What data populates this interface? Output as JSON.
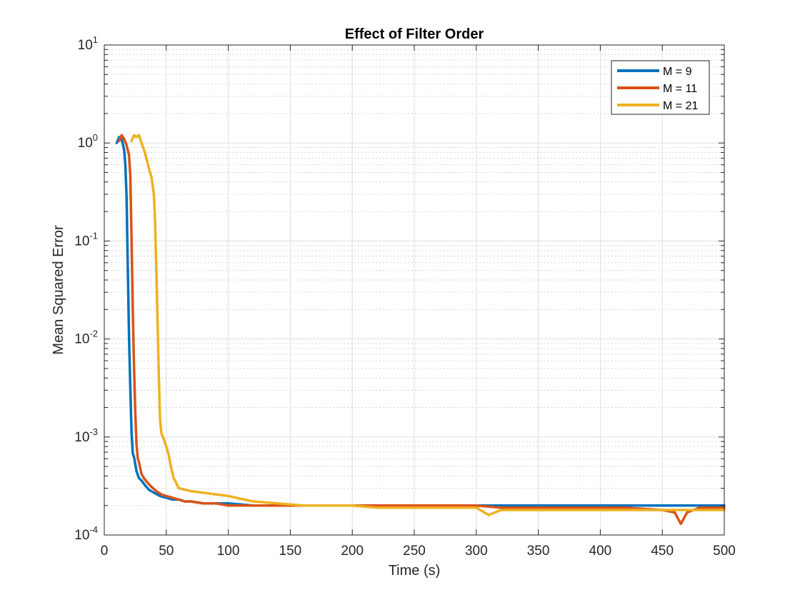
{
  "chart_data": {
    "type": "line",
    "title": "Effect of Filter Order",
    "xlabel": "Time (s)",
    "ylabel": "Mean Squared Error",
    "xlim": [
      0,
      500
    ],
    "ylim": [
      0.0001,
      10
    ],
    "yscale": "log",
    "x_ticks": [
      0,
      50,
      100,
      150,
      200,
      250,
      300,
      350,
      400,
      450,
      500
    ],
    "x_tick_labels": [
      "0",
      "50",
      "100",
      "150",
      "200",
      "250",
      "300",
      "350",
      "400",
      "450",
      "500"
    ],
    "y_ticks": [
      {
        "value": 0.0001,
        "base": "10",
        "exp": "-4"
      },
      {
        "value": 0.001,
        "base": "10",
        "exp": "-3"
      },
      {
        "value": 0.01,
        "base": "10",
        "exp": "-2"
      },
      {
        "value": 0.1,
        "base": "10",
        "exp": "-1"
      },
      {
        "value": 1,
        "base": "10",
        "exp": "0"
      },
      {
        "value": 10,
        "base": "10",
        "exp": "1"
      }
    ],
    "grid": true,
    "minor_grid": true,
    "legend_position": "top-right",
    "series": [
      {
        "name": "M = 9",
        "color": "#0072BD",
        "x": [
          10,
          12,
          14,
          16,
          17,
          18,
          19,
          20,
          21,
          22,
          23,
          24,
          26,
          28,
          30,
          33,
          36,
          40,
          45,
          50,
          55,
          60,
          65,
          70,
          80,
          90,
          100,
          120,
          140,
          160,
          180,
          200,
          220,
          250,
          280,
          300,
          320,
          350,
          380,
          400,
          420,
          450,
          480,
          500
        ],
        "y": [
          1.0,
          1.15,
          1.1,
          0.85,
          0.6,
          0.28,
          0.05,
          0.01,
          0.003,
          0.0011,
          0.00068,
          0.00062,
          0.00045,
          0.00038,
          0.00036,
          0.00032,
          0.00029,
          0.00027,
          0.00025,
          0.00024,
          0.00023,
          0.00023,
          0.00022,
          0.00022,
          0.00021,
          0.00021,
          0.00021,
          0.0002,
          0.0002,
          0.0002,
          0.0002,
          0.0002,
          0.0002,
          0.0002,
          0.0002,
          0.0002,
          0.0002,
          0.0002,
          0.0002,
          0.0002,
          0.0002,
          0.0002,
          0.0002,
          0.0002
        ]
      },
      {
        "name": "M = 11",
        "color": "#D95319",
        "x": [
          12,
          14,
          16,
          18,
          20,
          21,
          22,
          23,
          24,
          25,
          26,
          27,
          28,
          30,
          32,
          35,
          38,
          42,
          46,
          50,
          55,
          60,
          65,
          70,
          80,
          90,
          100,
          120,
          140,
          160,
          180,
          200,
          220,
          250,
          280,
          300,
          320,
          350,
          380,
          400,
          420,
          450,
          460,
          465,
          470,
          480,
          500
        ],
        "y": [
          1.05,
          1.2,
          1.1,
          0.95,
          0.75,
          0.45,
          0.1,
          0.02,
          0.005,
          0.0018,
          0.00085,
          0.0006,
          0.00055,
          0.00042,
          0.00038,
          0.00034,
          0.00031,
          0.00028,
          0.00026,
          0.00025,
          0.00024,
          0.00023,
          0.00022,
          0.00022,
          0.00021,
          0.00021,
          0.0002,
          0.0002,
          0.0002,
          0.0002,
          0.0002,
          0.0002,
          0.0002,
          0.0002,
          0.0002,
          0.0002,
          0.00019,
          0.00019,
          0.00019,
          0.00019,
          0.00019,
          0.00018,
          0.00017,
          0.00013,
          0.00017,
          0.00019,
          0.00019
        ]
      },
      {
        "name": "M = 21",
        "color": "#EDB120",
        "x": [
          22,
          24,
          26,
          28,
          30,
          32,
          34,
          36,
          38,
          40,
          41,
          42,
          43,
          44,
          45,
          46,
          48,
          50,
          52,
          54,
          56,
          58,
          60,
          65,
          70,
          80,
          90,
          100,
          120,
          140,
          160,
          180,
          200,
          220,
          250,
          280,
          300,
          310,
          320,
          350,
          380,
          400,
          420,
          450,
          480,
          500
        ],
        "y": [
          1.05,
          1.2,
          1.15,
          1.2,
          1.0,
          0.85,
          0.7,
          0.55,
          0.45,
          0.3,
          0.15,
          0.05,
          0.015,
          0.004,
          0.0015,
          0.0011,
          0.00095,
          0.0008,
          0.00065,
          0.00048,
          0.00038,
          0.00034,
          0.0003,
          0.00029,
          0.00028,
          0.00027,
          0.00026,
          0.00025,
          0.00022,
          0.00021,
          0.0002,
          0.0002,
          0.0002,
          0.00019,
          0.00019,
          0.00019,
          0.00019,
          0.00016,
          0.00018,
          0.00018,
          0.00018,
          0.00018,
          0.00018,
          0.00018,
          0.00018,
          0.00018
        ]
      }
    ]
  }
}
